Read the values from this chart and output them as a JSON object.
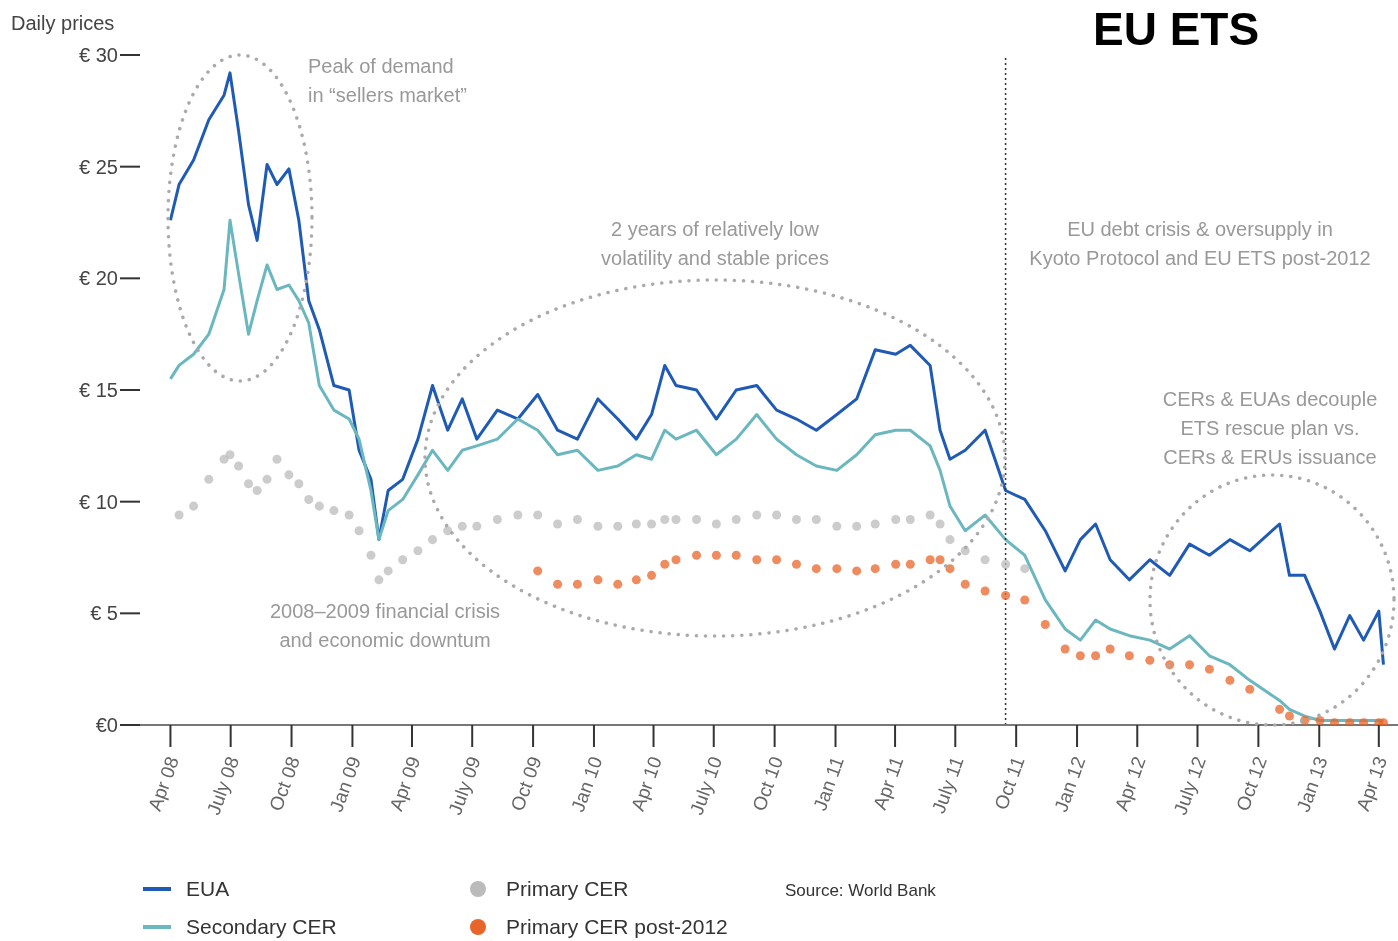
{
  "chart_data": {
    "type": "line",
    "title": "EU ETS",
    "ylabel": "Daily prices",
    "x": [
      "2008-04-01",
      "2008-04-14",
      "2008-05-06",
      "2008-05-29",
      "2008-06-21",
      "2008-06-30",
      "2008-07-13",
      "2008-07-28",
      "2008-08-10",
      "2008-08-25",
      "2008-09-09",
      "2008-09-27",
      "2008-10-12",
      "2008-10-27",
      "2008-11-12",
      "2008-12-04",
      "2008-12-27",
      "2009-01-11",
      "2009-01-29",
      "2009-02-10",
      "2009-02-24",
      "2009-03-18",
      "2009-04-10",
      "2009-05-02",
      "2009-05-25",
      "2009-06-16",
      "2009-07-08",
      "2009-08-08",
      "2009-09-08",
      "2009-10-08",
      "2009-11-07",
      "2009-12-07",
      "2010-01-07",
      "2010-02-06",
      "2010-03-06",
      "2010-03-29",
      "2010-04-18",
      "2010-05-05",
      "2010-06-05",
      "2010-07-05",
      "2010-08-04",
      "2010-09-04",
      "2010-10-04",
      "2010-11-03",
      "2010-12-03",
      "2011-01-03",
      "2011-02-02",
      "2011-03-02",
      "2011-04-02",
      "2011-04-24",
      "2011-05-24",
      "2011-06-08",
      "2011-06-23",
      "2011-07-16",
      "2011-08-15",
      "2011-09-15",
      "2011-10-14",
      "2011-11-14",
      "2011-12-14",
      "2012-01-06",
      "2012-01-29",
      "2012-02-20",
      "2012-03-20",
      "2012-04-20",
      "2012-05-20",
      "2012-06-19",
      "2012-07-19",
      "2012-08-19",
      "2012-09-18",
      "2012-11-02",
      "2012-11-17",
      "2012-12-10",
      "2013-01-02",
      "2013-01-24",
      "2013-02-16",
      "2013-03-09",
      "2013-04-01",
      "2013-04-08"
    ],
    "series": [
      {
        "name": "EUA",
        "type": "line",
        "color": "#1f5bb5",
        "values": [
          22.6,
          24.2,
          25.3,
          27.1,
          28.2,
          29.2,
          26.6,
          23.3,
          21.7,
          25.1,
          24.2,
          24.9,
          22.6,
          19.0,
          17.7,
          15.2,
          15.0,
          12.3,
          11.0,
          8.3,
          10.5,
          11.0,
          12.8,
          15.2,
          13.2,
          14.6,
          12.8,
          14.1,
          13.7,
          14.8,
          13.2,
          12.8,
          14.6,
          13.7,
          12.8,
          13.9,
          16.1,
          15.2,
          15.0,
          13.7,
          15.0,
          15.2,
          14.1,
          13.7,
          13.2,
          13.9,
          14.6,
          16.8,
          16.6,
          17.0,
          16.1,
          13.2,
          11.9,
          12.3,
          13.2,
          10.5,
          10.1,
          8.7,
          6.9,
          8.3,
          9.0,
          7.4,
          6.5,
          7.4,
          6.7,
          8.1,
          7.6,
          8.3,
          7.8,
          9.0,
          6.7,
          6.7,
          5.1,
          3.4,
          4.9,
          3.8,
          5.1,
          2.7
        ]
      },
      {
        "name": "Secondary CER",
        "type": "line",
        "color": "#6bb7c0",
        "values": [
          15.5,
          16.1,
          16.6,
          17.5,
          19.5,
          22.6,
          20.2,
          17.5,
          19.0,
          20.6,
          19.5,
          19.7,
          19.0,
          18.0,
          15.2,
          14.1,
          13.7,
          12.8,
          10.5,
          8.3,
          9.6,
          10.1,
          11.2,
          12.3,
          11.4,
          12.3,
          12.5,
          12.8,
          13.7,
          13.2,
          12.1,
          12.3,
          11.4,
          11.6,
          12.1,
          11.9,
          13.2,
          12.8,
          13.2,
          12.1,
          12.8,
          13.9,
          12.8,
          12.1,
          11.6,
          11.4,
          12.1,
          13.0,
          13.2,
          13.2,
          12.5,
          11.4,
          9.8,
          8.7,
          9.4,
          8.3,
          7.6,
          5.6,
          4.3,
          3.8,
          4.7,
          4.3,
          4.0,
          3.8,
          3.4,
          4.0,
          3.1,
          2.7,
          2.0,
          1.1,
          0.7,
          0.4,
          0.2,
          0.2,
          0.2,
          0.2,
          0.2,
          0.2
        ]
      },
      {
        "name": "Primary CER",
        "type": "scatter",
        "marker": "circle",
        "color": "#bbbbbb",
        "values": [
          null,
          9.4,
          9.8,
          11.0,
          11.9,
          12.1,
          11.6,
          10.8,
          10.5,
          11.0,
          11.9,
          11.2,
          10.8,
          10.1,
          9.8,
          9.6,
          9.4,
          8.7,
          7.6,
          6.5,
          6.9,
          7.4,
          7.8,
          8.3,
          8.7,
          8.9,
          8.9,
          9.2,
          9.4,
          9.4,
          9.0,
          9.2,
          8.9,
          8.9,
          9.0,
          9.0,
          9.2,
          9.2,
          9.2,
          9.0,
          9.2,
          9.4,
          9.4,
          9.2,
          9.2,
          8.9,
          8.9,
          9.0,
          9.2,
          9.2,
          9.4,
          9.0,
          8.3,
          7.8,
          7.4,
          7.2,
          7.0,
          null,
          null,
          null,
          null,
          null,
          null,
          null,
          null,
          null,
          null,
          null,
          null,
          null,
          null,
          null,
          null,
          null,
          null,
          null,
          null,
          null
        ]
      },
      {
        "name": "Primary CER post-2012",
        "type": "scatter",
        "marker": "circle",
        "color": "#e8652a",
        "values": [
          null,
          null,
          null,
          null,
          null,
          null,
          null,
          null,
          null,
          null,
          null,
          null,
          null,
          null,
          null,
          null,
          null,
          null,
          null,
          null,
          null,
          null,
          null,
          null,
          null,
          null,
          null,
          null,
          null,
          6.9,
          6.3,
          6.3,
          6.5,
          6.3,
          6.5,
          6.7,
          7.2,
          7.4,
          7.6,
          7.6,
          7.6,
          7.4,
          7.4,
          7.2,
          7.0,
          7.0,
          6.9,
          7.0,
          7.2,
          7.2,
          7.4,
          7.4,
          7.0,
          6.3,
          6.0,
          5.8,
          5.6,
          4.5,
          3.4,
          3.1,
          3.1,
          3.4,
          3.1,
          2.9,
          2.7,
          2.7,
          2.5,
          2.0,
          1.6,
          0.7,
          0.4,
          0.2,
          0.2,
          0.1,
          0.1,
          0.1,
          0.1,
          0.1
        ]
      }
    ],
    "xlim": [
      "2008-02-15",
      "2013-04-30"
    ],
    "xticks": [
      {
        "value": "2008-04-01",
        "label": "Apr 08"
      },
      {
        "value": "2008-07-01",
        "label": "July 08"
      },
      {
        "value": "2008-10-01",
        "label": "Oct 08"
      },
      {
        "value": "2009-01-01",
        "label": "Jan 09"
      },
      {
        "value": "2009-04-01",
        "label": "Apr 09"
      },
      {
        "value": "2009-07-01",
        "label": "July 09"
      },
      {
        "value": "2009-10-01",
        "label": "Oct 09"
      },
      {
        "value": "2010-01-01",
        "label": "Jan 10"
      },
      {
        "value": "2010-04-01",
        "label": "Apr 10"
      },
      {
        "value": "2010-07-01",
        "label": "July 10"
      },
      {
        "value": "2010-10-01",
        "label": "Oct 10"
      },
      {
        "value": "2011-01-01",
        "label": "Jan 11"
      },
      {
        "value": "2011-04-01",
        "label": "Apr 11"
      },
      {
        "value": "2011-07-01",
        "label": "July 11"
      },
      {
        "value": "2011-10-01",
        "label": "Oct 11"
      },
      {
        "value": "2012-01-01",
        "label": "Jan 12"
      },
      {
        "value": "2012-04-01",
        "label": "Apr 12"
      },
      {
        "value": "2012-07-01",
        "label": "July 12"
      },
      {
        "value": "2012-10-01",
        "label": "Oct 12"
      },
      {
        "value": "2013-01-01",
        "label": "Jan 13"
      },
      {
        "value": "2013-04-01",
        "label": "Apr 13"
      }
    ],
    "ylim": [
      0,
      30
    ],
    "yticks": [
      {
        "value": 0,
        "label": "€0"
      },
      {
        "value": 5,
        "label": "€ 5"
      },
      {
        "value": 10,
        "label": "€ 10"
      },
      {
        "value": 15,
        "label": "€ 15"
      },
      {
        "value": 20,
        "label": "€ 20"
      },
      {
        "value": 25,
        "label": "€ 25"
      },
      {
        "value": 30,
        "label": "€ 30"
      }
    ],
    "ref_lines": [
      {
        "axis": "x",
        "value": "2011-09-15",
        "color": "#333333",
        "line_style": "dotted"
      }
    ],
    "legend": "bottom",
    "annotations": [
      "Peak of demand\nin “sellers market”",
      "2 years of relatively low\nvolatility and stable prices",
      "EU debt crisis & oversupply in\nKyoto Protocol and EU ETS post-2012",
      "CERs & EUAs decouple\nETS rescue plan vs.\nCERs & ERUs issuance",
      "2008–2009 financial crisis\nand economic downtum",
      "Source: World Bank"
    ]
  }
}
